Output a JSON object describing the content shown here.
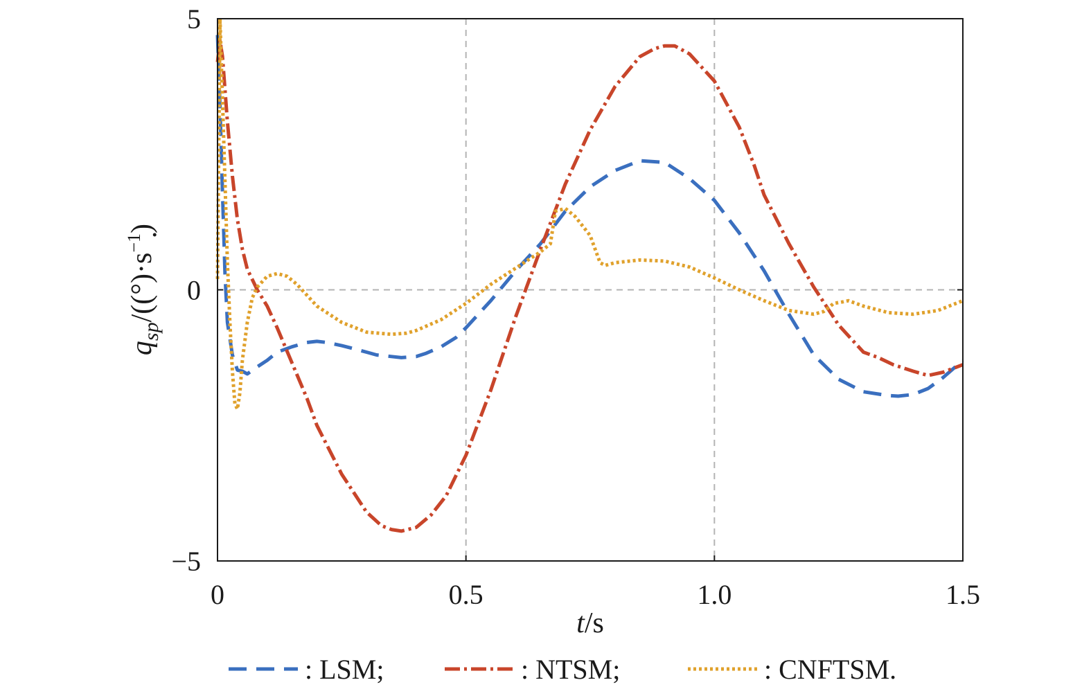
{
  "chart_data": {
    "type": "line",
    "xlabel": {
      "var": "t",
      "unit": "/s"
    },
    "ylabel": {
      "var": "q",
      "sub": "sp",
      "unit": "/((°)·s",
      "exp": "−1",
      "close": ")"
    },
    "xlim": [
      0,
      1.5
    ],
    "ylim": [
      -5,
      5
    ],
    "x_ticks": [
      0,
      0.5,
      1.0,
      1.5
    ],
    "x_tick_labels": [
      "0",
      "0.5",
      "1.0",
      "1.5"
    ],
    "y_ticks": [
      -5,
      0,
      5
    ],
    "y_tick_labels": [
      "−5",
      "0",
      "5"
    ],
    "grid": {
      "x": [
        0.5,
        1.0
      ],
      "y": [
        0
      ],
      "style": "dashed",
      "color": "#b3b3b3"
    },
    "legend_placement": "bottom",
    "series": [
      {
        "name": ": LSM;",
        "color": "#3a6fbf",
        "dash": "dashed",
        "x": [
          0,
          0.005,
          0.01,
          0.015,
          0.02,
          0.03,
          0.04,
          0.05,
          0.06,
          0.08,
          0.1,
          0.12,
          0.15,
          0.18,
          0.2,
          0.22,
          0.25,
          0.28,
          0.3,
          0.32,
          0.35,
          0.37,
          0.4,
          0.42,
          0.45,
          0.48,
          0.5,
          0.55,
          0.6,
          0.65,
          0.7,
          0.75,
          0.8,
          0.85,
          0.9,
          0.95,
          1.0,
          1.05,
          1.1,
          1.15,
          1.2,
          1.25,
          1.3,
          1.35,
          1.37,
          1.4,
          1.43,
          1.46,
          1.5
        ],
        "y": [
          4.7,
          3.4,
          1.8,
          0.3,
          -0.6,
          -1.2,
          -1.48,
          -1.5,
          -1.55,
          -1.42,
          -1.3,
          -1.15,
          -1.05,
          -0.97,
          -0.95,
          -0.97,
          -1.03,
          -1.1,
          -1.15,
          -1.2,
          -1.23,
          -1.25,
          -1.23,
          -1.17,
          -1.05,
          -0.88,
          -0.7,
          -0.2,
          0.35,
          0.85,
          1.45,
          1.9,
          2.2,
          2.38,
          2.35,
          2.05,
          1.65,
          1.05,
          0.35,
          -0.45,
          -1.2,
          -1.65,
          -1.88,
          -1.95,
          -1.96,
          -1.93,
          -1.82,
          -1.62,
          -1.3
        ]
      },
      {
        "name": ": NTSM;",
        "color": "#c8452a",
        "dash": "dashdot",
        "x": [
          0,
          0.005,
          0.01,
          0.02,
          0.03,
          0.04,
          0.05,
          0.06,
          0.08,
          0.1,
          0.12,
          0.15,
          0.18,
          0.2,
          0.25,
          0.3,
          0.33,
          0.35,
          0.37,
          0.4,
          0.43,
          0.46,
          0.5,
          0.55,
          0.6,
          0.65,
          0.7,
          0.75,
          0.8,
          0.85,
          0.88,
          0.9,
          0.92,
          0.95,
          1.0,
          1.05,
          1.08,
          1.1,
          1.15,
          1.2,
          1.25,
          1.3,
          1.33,
          1.36,
          1.4,
          1.43,
          1.46,
          1.5
        ],
        "y": [
          4.2,
          4.6,
          4.3,
          3.1,
          2.1,
          1.3,
          0.75,
          0.38,
          0.0,
          -0.3,
          -0.7,
          -1.35,
          -2.0,
          -2.5,
          -3.4,
          -4.1,
          -4.35,
          -4.42,
          -4.45,
          -4.38,
          -4.15,
          -3.8,
          -3.05,
          -1.85,
          -0.5,
          0.75,
          1.95,
          2.95,
          3.75,
          4.3,
          4.45,
          4.5,
          4.5,
          4.35,
          3.85,
          3.0,
          2.3,
          1.75,
          0.85,
          0.05,
          -0.65,
          -1.15,
          -1.25,
          -1.38,
          -1.5,
          -1.58,
          -1.52,
          -1.38
        ]
      },
      {
        "name": ": CNFTSM.",
        "color": "#e0a12c",
        "dash": "dotted",
        "x": [
          0,
          0.005,
          0.01,
          0.015,
          0.02,
          0.025,
          0.03,
          0.035,
          0.04,
          0.045,
          0.05,
          0.06,
          0.07,
          0.08,
          0.1,
          0.12,
          0.14,
          0.16,
          0.18,
          0.2,
          0.25,
          0.3,
          0.35,
          0.38,
          0.4,
          0.45,
          0.5,
          0.55,
          0.6,
          0.65,
          0.67,
          0.68,
          0.7,
          0.72,
          0.75,
          0.77,
          0.78,
          0.8,
          0.85,
          0.9,
          0.95,
          1.0,
          1.05,
          1.1,
          1.15,
          1.2,
          1.22,
          1.24,
          1.26,
          1.27,
          1.3,
          1.35,
          1.4,
          1.45,
          1.5
        ],
        "y": [
          0.2,
          5.0,
          3.5,
          2.0,
          0.5,
          -0.6,
          -1.5,
          -2.1,
          -2.2,
          -1.9,
          -1.3,
          -0.6,
          -0.15,
          0.05,
          0.25,
          0.3,
          0.25,
          0.1,
          -0.1,
          -0.3,
          -0.6,
          -0.78,
          -0.82,
          -0.8,
          -0.75,
          -0.55,
          -0.25,
          0.1,
          0.4,
          0.7,
          0.85,
          1.45,
          1.5,
          1.35,
          1.0,
          0.5,
          0.45,
          0.5,
          0.55,
          0.53,
          0.42,
          0.22,
          0.0,
          -0.2,
          -0.38,
          -0.45,
          -0.4,
          -0.25,
          -0.22,
          -0.2,
          -0.3,
          -0.42,
          -0.45,
          -0.38,
          -0.2
        ]
      }
    ]
  }
}
